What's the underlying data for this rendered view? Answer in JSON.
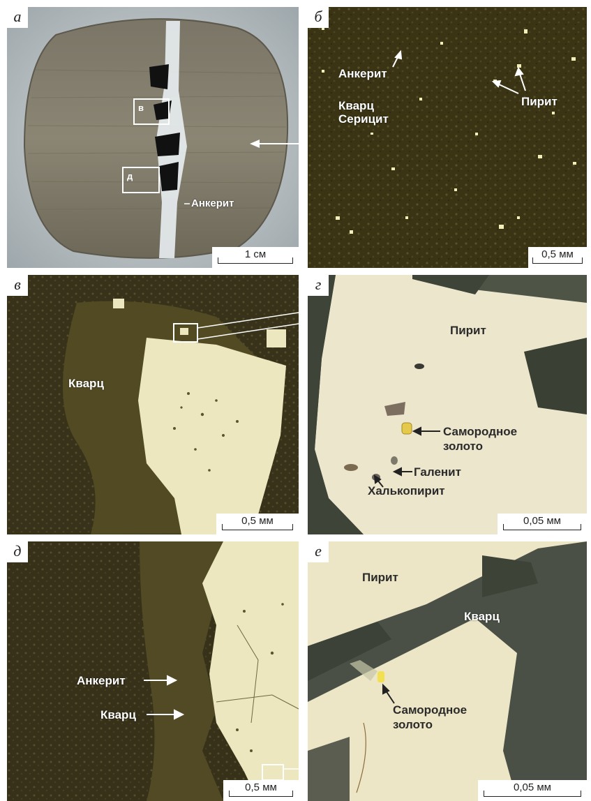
{
  "panels": {
    "a": {
      "letter": "а",
      "scale": "1 см",
      "inset_v": "в",
      "inset_d": "д",
      "label_ankerit": "Анкерит"
    },
    "b": {
      "letter": "б",
      "scale": "0,5 мм",
      "label_ankerit": "Анкерит",
      "label_kvarts": "Кварц",
      "label_serisit": "Серицит",
      "label_pirit": "Пирит"
    },
    "v": {
      "letter": "в",
      "scale": "0,5 мм",
      "label_kvarts": "Кварц"
    },
    "g": {
      "letter": "г",
      "scale": "0,05 мм",
      "label_pirit": "Пирит",
      "label_gold_1": "Самородное",
      "label_gold_2": "золото",
      "label_galenit": "Галенит",
      "label_chalco": "Халькопирит"
    },
    "d": {
      "letter": "д",
      "scale": "0,5 мм",
      "label_ankerit": "Анкерит",
      "label_kvarts": "Кварц"
    },
    "e": {
      "letter": "е",
      "scale": "0,05 мм",
      "label_pirit": "Пирит",
      "label_kvarts": "Кварц",
      "label_gold_1": "Самородное",
      "label_gold_2": "золото"
    }
  },
  "colors": {
    "matrix": "#3b3514",
    "pyrite": "#efe9c2",
    "quartz": "#4a4526",
    "gold": "#e8d44a"
  }
}
